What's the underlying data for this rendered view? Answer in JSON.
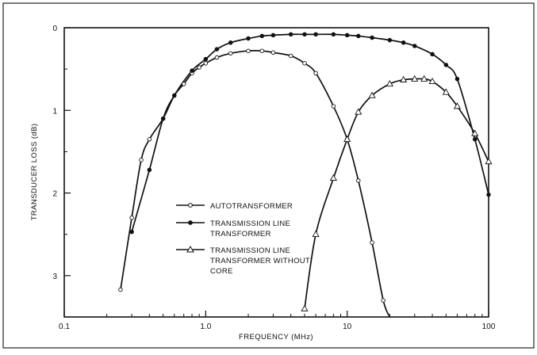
{
  "chart_data": {
    "type": "line",
    "title": "",
    "xlabel": "FREQUENCY (MHz)",
    "ylabel": "TRANSDUCER LOSS (dB)",
    "x_scale": "log",
    "xlim": [
      0.1,
      100
    ],
    "ylim": [
      0,
      3.5
    ],
    "y_inverted": true,
    "grid": false,
    "x_ticks": [
      "0.1",
      "1.0",
      "10",
      "100"
    ],
    "y_ticks": [
      "0",
      "1",
      "2",
      "3"
    ],
    "legend_position": "lower-left inside plot",
    "series": [
      {
        "name": "AUTOTRANSFORMER",
        "marker": "open-circle",
        "color": "#111111",
        "x": [
          0.25,
          0.3,
          0.35,
          0.4,
          0.5,
          0.6,
          0.7,
          0.8,
          0.9,
          1.0,
          1.2,
          1.5,
          2.0,
          2.5,
          3.0,
          4.0,
          5.0,
          6.0,
          8.0,
          10,
          12,
          15,
          18,
          20
        ],
        "y": [
          3.17,
          2.3,
          1.6,
          1.35,
          1.1,
          0.82,
          0.68,
          0.55,
          0.48,
          0.43,
          0.36,
          0.31,
          0.28,
          0.28,
          0.3,
          0.34,
          0.43,
          0.55,
          0.95,
          1.35,
          1.85,
          2.6,
          3.3,
          3.5
        ]
      },
      {
        "name": "TRANSMISSION LINE TRANSFORMER",
        "marker": "filled-circle",
        "color": "#111111",
        "x": [
          0.3,
          0.4,
          0.5,
          0.6,
          0.8,
          1.0,
          1.2,
          1.5,
          2.0,
          2.5,
          3.0,
          4.0,
          5.0,
          6.0,
          8.0,
          10,
          12,
          15,
          20,
          25,
          30,
          40,
          50,
          60,
          80,
          100
        ],
        "y": [
          2.47,
          1.72,
          1.1,
          0.82,
          0.52,
          0.38,
          0.26,
          0.18,
          0.13,
          0.1,
          0.09,
          0.08,
          0.08,
          0.08,
          0.08,
          0.09,
          0.1,
          0.12,
          0.15,
          0.18,
          0.22,
          0.32,
          0.45,
          0.62,
          1.35,
          2.02
        ]
      },
      {
        "name": "TRANSMISSION LINE TRANSFORMER WITHOUT CORE",
        "marker": "open-triangle",
        "color": "#111111",
        "x": [
          5.0,
          6.0,
          8.0,
          10,
          12,
          15,
          20,
          25,
          30,
          35,
          40,
          50,
          60,
          80,
          100
        ],
        "y": [
          3.4,
          2.5,
          1.82,
          1.35,
          1.02,
          0.82,
          0.68,
          0.63,
          0.62,
          0.62,
          0.65,
          0.78,
          0.95,
          1.28,
          1.62
        ]
      }
    ],
    "legend": {
      "autotransformer": "AUTOTRANSFORMER",
      "tlt_line1": "TRANSMISSION LINE",
      "tlt_line2": "TRANSFORMER",
      "tltnc_line1": "TRANSMISSION LINE",
      "tltnc_line2": "TRANSFORMER WITHOUT",
      "tltnc_line3": "CORE"
    }
  }
}
